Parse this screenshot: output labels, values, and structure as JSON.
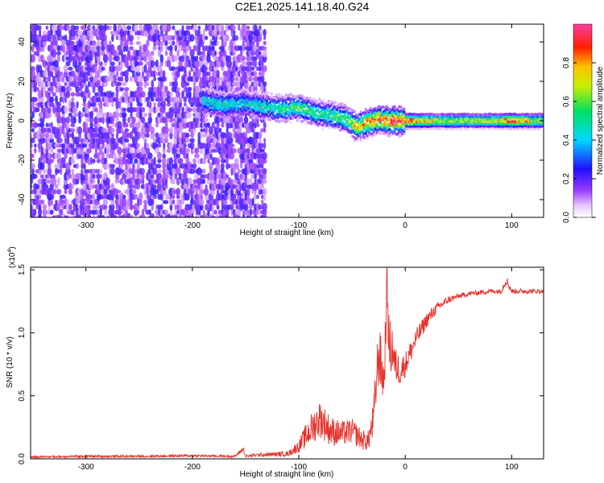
{
  "title": "C2E1.2025.141.18.40.G24",
  "chart_data": [
    {
      "type": "heatmap",
      "xlabel": "Height of straight line (km)",
      "ylabel": "Frequency (Hz)",
      "xlim": [
        -352,
        130
      ],
      "ylim": [
        -49,
        49
      ],
      "x_ticks": [
        -300,
        -200,
        -100,
        0,
        100
      ],
      "x_tick_labels": [
        "-300",
        "-200",
        "-100",
        "0",
        "100"
      ],
      "y_ticks": [
        -40,
        -20,
        0,
        20,
        40
      ],
      "y_tick_labels": [
        "-40",
        "-20",
        "0",
        "20",
        "40"
      ],
      "colorbar": {
        "label": "Normalized spectral amplitude",
        "range": [
          0,
          1
        ],
        "ticks": [
          0.0,
          0.2,
          0.4,
          0.6,
          0.8
        ],
        "tick_labels": [
          "0.0",
          "0.2",
          "0.4",
          "0.6",
          "0.8"
        ]
      },
      "noise_region": {
        "x": [
          -352,
          -130
        ],
        "y": [
          -49,
          49
        ],
        "level": 0.12
      },
      "signal_ridge": {
        "x": [
          -190,
          -170,
          -150,
          -130,
          -115,
          -100,
          -85,
          -70,
          -55,
          -45,
          -35,
          -25,
          -15,
          0,
          20,
          50,
          80,
          100,
          130
        ],
        "freq": [
          10,
          8,
          9,
          7,
          6,
          7,
          4,
          3,
          1,
          -3,
          -1,
          1,
          0,
          0,
          0,
          0,
          0,
          0,
          0
        ],
        "amplitude": [
          0.45,
          0.5,
          0.45,
          0.5,
          0.55,
          0.6,
          0.55,
          0.55,
          0.6,
          0.8,
          0.85,
          0.95,
          0.95,
          0.95,
          0.75,
          0.7,
          0.7,
          0.9,
          0.65
        ]
      }
    },
    {
      "type": "line",
      "xlabel": "Height of straight line (km)",
      "ylabel": "SNR (10 * v/v)",
      "y_multiplier": "(x10",
      "y_multiplier_exp": "4",
      "xlim": [
        -352,
        130
      ],
      "ylim": [
        0,
        1.52
      ],
      "x_ticks": [
        -300,
        -200,
        -100,
        0,
        100
      ],
      "x_tick_labels": [
        "-300",
        "-200",
        "-100",
        "0",
        "100"
      ],
      "y_ticks": [
        0.0,
        0.5,
        1.0,
        1.5
      ],
      "y_tick_labels": [
        "0.0",
        "0.5",
        "1.0",
        "1.5"
      ],
      "series": [
        {
          "color": "#e8302a",
          "x": [
            -352,
            -300,
            -250,
            -200,
            -160,
            -152,
            -150,
            -140,
            -110,
            -100,
            -90,
            -80,
            -70,
            -60,
            -50,
            -40,
            -35,
            -30,
            -25,
            -20,
            -17,
            -15,
            -12,
            -10,
            -5,
            0,
            10,
            20,
            30,
            40,
            50,
            60,
            70,
            80,
            90,
            95,
            100,
            110,
            120,
            130
          ],
          "y": [
            0.015,
            0.02,
            0.02,
            0.025,
            0.02,
            0.08,
            0.02,
            0.03,
            0.04,
            0.1,
            0.22,
            0.32,
            0.22,
            0.2,
            0.22,
            0.15,
            0.14,
            0.3,
            0.85,
            0.6,
            1.4,
            0.85,
            0.9,
            0.75,
            0.7,
            0.75,
            0.95,
            1.1,
            1.2,
            1.26,
            1.29,
            1.31,
            1.32,
            1.33,
            1.33,
            1.42,
            1.33,
            1.33,
            1.33,
            1.33
          ],
          "noise": [
            0.008,
            0.01,
            0.01,
            0.01,
            0.01,
            0.02,
            0.01,
            0.015,
            0.02,
            0.05,
            0.12,
            0.15,
            0.12,
            0.1,
            0.1,
            0.08,
            0.08,
            0.15,
            0.25,
            0.2,
            0.2,
            0.25,
            0.2,
            0.15,
            0.12,
            0.1,
            0.08,
            0.06,
            0.04,
            0.03,
            0.02,
            0.02,
            0.02,
            0.02,
            0.02,
            0.04,
            0.02,
            0.02,
            0.02,
            0.015
          ]
        }
      ]
    }
  ]
}
